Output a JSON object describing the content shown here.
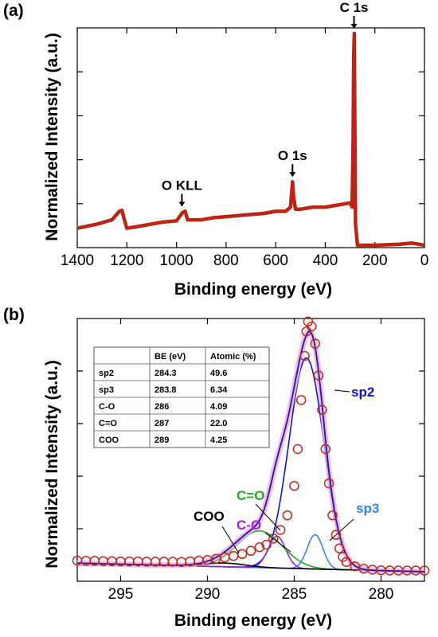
{
  "chart_data": [
    {
      "panel_label": "(a)",
      "type": "line",
      "xlabel": "Binding energy (eV)",
      "ylabel": "Normalized Intensity (a.u.)",
      "xlim": [
        1400,
        0
      ],
      "x_reversed": true,
      "xticks": [
        1400,
        1200,
        1000,
        800,
        600,
        400,
        200,
        0
      ],
      "ylim": [
        0,
        1
      ],
      "y_tick_labels_shown": false,
      "grid": false,
      "series": [
        {
          "color": "#e8120c",
          "x": [
            1400,
            1320,
            1260,
            1230,
            1220,
            1210,
            1200,
            1150,
            1100,
            1050,
            1000,
            975,
            965,
            955,
            900,
            850,
            800,
            750,
            700,
            650,
            600,
            560,
            540,
            532,
            528,
            520,
            500,
            450,
            400,
            350,
            300,
            292,
            288,
            285,
            283,
            281,
            278,
            270,
            200,
            100,
            50,
            0
          ],
          "y": [
            0.08,
            0.1,
            0.12,
            0.16,
            0.165,
            0.12,
            0.08,
            0.09,
            0.1,
            0.11,
            0.115,
            0.155,
            0.16,
            0.12,
            0.12,
            0.13,
            0.135,
            0.14,
            0.145,
            0.15,
            0.16,
            0.16,
            0.18,
            0.3,
            0.23,
            0.17,
            0.17,
            0.18,
            0.18,
            0.19,
            0.2,
            0.18,
            0.45,
            0.9,
            1.0,
            0.6,
            0.1,
            0.0,
            0.0,
            0.005,
            0.01,
            0.0
          ]
        }
      ],
      "annotations": [
        {
          "text": "C 1s",
          "x": 284
        },
        {
          "text": "O 1s",
          "x": 532
        },
        {
          "text": "O KLL",
          "x": 978
        }
      ]
    },
    {
      "panel_label": "(b)",
      "type": "line",
      "xlabel": "Binding energy (eV)",
      "ylabel": "Normalized Intensity (a.u.)",
      "xlim": [
        297.5,
        277.5
      ],
      "x_reversed": true,
      "xticks": [
        295,
        290,
        285,
        280
      ],
      "ylim": [
        0,
        1.05
      ],
      "y_tick_labels_shown": false,
      "grid": false,
      "baseline": {
        "y_left": 0.035,
        "y_right": 0.0
      },
      "components": [
        {
          "name": "sp2",
          "center": 284.3,
          "height": 0.86,
          "width": 1.0,
          "color": "#1010d0"
        },
        {
          "name": "sp3",
          "center": 283.8,
          "height": 0.14,
          "width": 0.45,
          "color": "#2f86e8"
        },
        {
          "name": "C-O",
          "center": 286,
          "height": 0.13,
          "width": 0.5,
          "color": "#a020e0"
        },
        {
          "name": "C=O",
          "center": 287,
          "height": 0.15,
          "width": 1.3,
          "color": "#24a824"
        },
        {
          "name": "COO",
          "center": 289,
          "height": 0.015,
          "width": 1.2,
          "color": "#000000"
        }
      ],
      "envelope_color": "#1a1aa0",
      "measured": {
        "marker": "open-circle",
        "color": "#c0281c",
        "x": [
          297.5,
          297,
          296.5,
          296,
          295.5,
          295,
          294.5,
          294,
          293.5,
          293,
          292.5,
          292,
          291.5,
          291,
          290.5,
          290,
          289.5,
          289,
          288.5,
          288,
          287.5,
          287,
          286.6,
          286.2,
          285.8,
          285.4,
          285,
          284.8,
          284.6,
          284.4,
          284.3,
          284.2,
          284,
          283.8,
          283.6,
          283.4,
          283.2,
          283,
          282.8,
          282.6,
          282.4,
          282.2,
          282,
          281.5,
          281,
          280.5,
          280,
          279.5,
          279,
          278.5,
          278,
          277.5
        ],
        "y": [
          0.045,
          0.044,
          0.044,
          0.043,
          0.043,
          0.042,
          0.042,
          0.042,
          0.041,
          0.041,
          0.041,
          0.041,
          0.04,
          0.042,
          0.045,
          0.048,
          0.053,
          0.058,
          0.064,
          0.072,
          0.085,
          0.1,
          0.11,
          0.135,
          0.17,
          0.23,
          0.35,
          0.5,
          0.7,
          0.88,
          0.98,
          1.02,
          1.0,
          0.93,
          0.8,
          0.66,
          0.5,
          0.36,
          0.23,
          0.15,
          0.095,
          0.06,
          0.04,
          0.022,
          0.012,
          0.008,
          0.006,
          0.005,
          0.005,
          0.005,
          0.005,
          0.005
        ]
      },
      "labels": [
        {
          "text": "sp2",
          "color": "#1010d0"
        },
        {
          "text": "sp3",
          "color": "#2f86e8"
        },
        {
          "text": "C=O",
          "color": "#24a824"
        },
        {
          "text": "C-O",
          "color": "#a020e0"
        },
        {
          "text": "COO",
          "color": "#000000"
        }
      ],
      "table": {
        "columns": [
          "",
          "BE (eV)",
          "Atomic (%)"
        ],
        "rows": [
          [
            "sp2",
            "284.3",
            "49.6"
          ],
          [
            "sp3",
            "283.8",
            "6.34"
          ],
          [
            "C-O",
            "286",
            "4.09"
          ],
          [
            "C=O",
            "287",
            "22.0"
          ],
          [
            "COO",
            "289",
            "4.25"
          ]
        ]
      }
    }
  ]
}
